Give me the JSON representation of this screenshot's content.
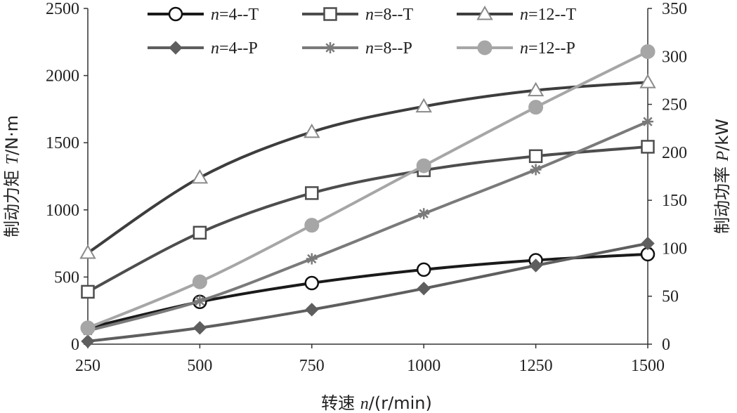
{
  "chart_data": {
    "type": "line",
    "x": [
      250,
      500,
      750,
      1000,
      1250,
      1500
    ],
    "xlim": [
      250,
      1500
    ],
    "xticks": [
      "250",
      "500",
      "750",
      "1000",
      "1250",
      "1500"
    ],
    "xlabel": {
      "prefix": "转速 ",
      "var": "n",
      "unit": "/(r/min)"
    },
    "y_left": {
      "lim": [
        0,
        2500
      ],
      "ticks": [
        "0",
        "500",
        "1000",
        "1500",
        "2000",
        "2500"
      ],
      "label": {
        "prefix": "制动力矩 ",
        "var": "T",
        "unit": "/N·m"
      }
    },
    "y_right": {
      "lim": [
        0,
        350
      ],
      "ticks": [
        "0",
        "50",
        "100",
        "150",
        "200",
        "250",
        "300",
        "350"
      ],
      "label": {
        "prefix": "制动功率 ",
        "var": "P",
        "unit": "/kW"
      }
    },
    "series": [
      {
        "name": "n=4--T",
        "legend_var": "n",
        "legend_rest": "=4--T",
        "axis": "left",
        "marker": "circle-open",
        "color": "#1a1a1a",
        "values": [
          120,
          315,
          455,
          555,
          625,
          670
        ]
      },
      {
        "name": "n=8--T",
        "legend_var": "n",
        "legend_rest": "=8--T",
        "axis": "left",
        "marker": "square-open",
        "color": "#4d4d4d",
        "values": [
          390,
          830,
          1125,
          1295,
          1400,
          1470
        ]
      },
      {
        "name": "n=12--T",
        "legend_var": "n",
        "legend_rest": "=12--T",
        "axis": "left",
        "marker": "triangle-open",
        "color": "#3d3d3d",
        "values": [
          680,
          1240,
          1580,
          1770,
          1890,
          1950
        ]
      },
      {
        "name": "n=4--P",
        "legend_var": "n",
        "legend_rest": "=4--P",
        "axis": "right",
        "marker": "diamond",
        "color": "#5e5e5e",
        "values": [
          3,
          17,
          36,
          58,
          82,
          105
        ]
      },
      {
        "name": "n=8--P",
        "legend_var": "n",
        "legend_rest": "=8--P",
        "axis": "right",
        "marker": "star",
        "color": "#7a7a7a",
        "values": [
          14,
          45,
          89,
          136,
          182,
          232
        ]
      },
      {
        "name": "n=12--P",
        "legend_var": "n",
        "legend_rest": "=12--P",
        "axis": "right",
        "marker": "circle-filled",
        "color": "#a6a6a6",
        "values": [
          17,
          65,
          124,
          186,
          247,
          305
        ]
      }
    ]
  }
}
